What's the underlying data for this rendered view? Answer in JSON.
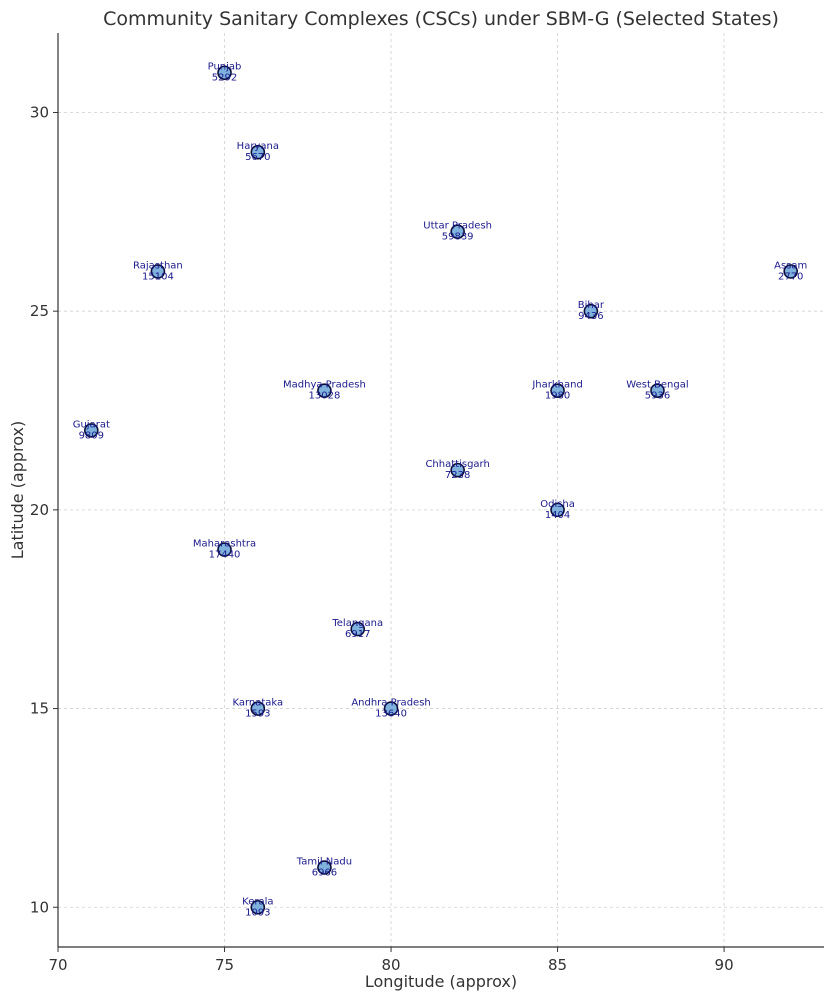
{
  "chart_data": {
    "type": "scatter",
    "title": "Community Sanitary Complexes (CSCs) under SBM-G (Selected States)",
    "xlabel": "Longitude (approx)",
    "ylabel": "Latitude (approx)",
    "xlim": [
      70,
      93
    ],
    "ylim": [
      9,
      32
    ],
    "xticks": [
      "70",
      "75",
      "80",
      "85",
      "90"
    ],
    "yticks": [
      "10",
      "15",
      "20",
      "25",
      "30"
    ],
    "grid": true,
    "marker_color": "#7fb2dc",
    "label_color": "#1a1a8c",
    "points": [
      {
        "state": "Punjab",
        "value": "5292",
        "x": 75,
        "y": 31
      },
      {
        "state": "Haryana",
        "value": "5670",
        "x": 76,
        "y": 29
      },
      {
        "state": "Uttar Pradesh",
        "value": "59839",
        "x": 82,
        "y": 27
      },
      {
        "state": "Rajasthan",
        "value": "15104",
        "x": 73,
        "y": 26
      },
      {
        "state": "Assam",
        "value": "2770",
        "x": 92,
        "y": 26
      },
      {
        "state": "Bihar",
        "value": "9436",
        "x": 86,
        "y": 25
      },
      {
        "state": "Madhya Pradesh",
        "value": "13028",
        "x": 78,
        "y": 23
      },
      {
        "state": "Jharkhand",
        "value": "1980",
        "x": 85,
        "y": 23
      },
      {
        "state": "West Bengal",
        "value": "5936",
        "x": 88,
        "y": 23
      },
      {
        "state": "Gujarat",
        "value": "9809",
        "x": 71,
        "y": 22
      },
      {
        "state": "Chhattisgarh",
        "value": "7238",
        "x": 82,
        "y": 21
      },
      {
        "state": "Odisha",
        "value": "1404",
        "x": 85,
        "y": 20
      },
      {
        "state": "Maharashtra",
        "value": "17440",
        "x": 75,
        "y": 19
      },
      {
        "state": "Telangana",
        "value": "6917",
        "x": 79,
        "y": 17
      },
      {
        "state": "Karnataka",
        "value": "1593",
        "x": 76,
        "y": 15
      },
      {
        "state": "Andhra Pradesh",
        "value": "13640",
        "x": 80,
        "y": 15
      },
      {
        "state": "Tamil Nadu",
        "value": "6966",
        "x": 78,
        "y": 11
      },
      {
        "state": "Kerala",
        "value": "1093",
        "x": 76,
        "y": 10
      }
    ]
  }
}
